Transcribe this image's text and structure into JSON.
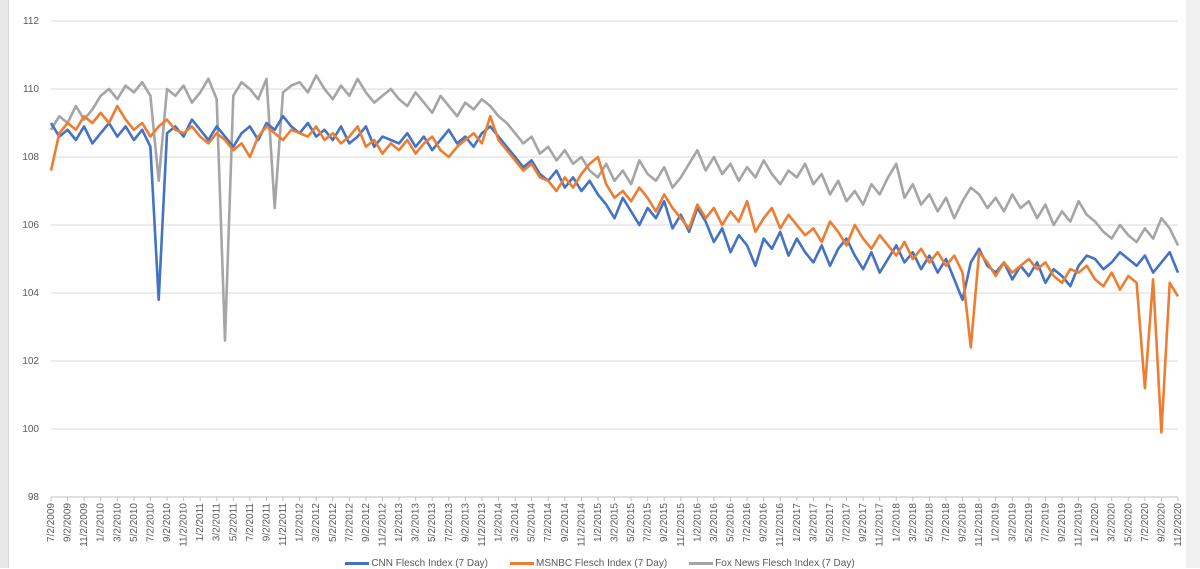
{
  "chart_data": {
    "type": "line",
    "title": "",
    "xlabel": "",
    "ylabel": "",
    "ylim": [
      98,
      112
    ],
    "yticks": [
      98,
      100,
      102,
      104,
      106,
      108,
      110,
      112
    ],
    "grid": true,
    "legend_position": "bottom",
    "x_start": "7/2009",
    "x_interval": "monthly",
    "x_tick_labels": [
      "7/2/2009",
      "9/2/2009",
      "11/2/2009",
      "1/2/2010",
      "3/2/2010",
      "5/2/2010",
      "7/2/2010",
      "9/2/2010",
      "11/2/2010",
      "1/2/2011",
      "3/2/2011",
      "5/2/2011",
      "7/2/2011",
      "9/2/2011",
      "11/2/2011",
      "1/2/2012",
      "3/2/2012",
      "5/2/2012",
      "7/2/2012",
      "9/2/2012",
      "11/2/2012",
      "1/2/2013",
      "3/2/2013",
      "5/2/2013",
      "7/2/2013",
      "9/2/2013",
      "11/2/2013",
      "1/2/2014",
      "3/2/2014",
      "5/2/2014",
      "7/2/2014",
      "9/2/2014",
      "11/2/2014",
      "1/2/2015",
      "3/2/2015",
      "5/2/2015",
      "7/2/2015",
      "9/2/2015",
      "11/2/2015",
      "1/2/2016",
      "3/2/2016",
      "5/2/2016",
      "7/2/2016",
      "9/2/2016",
      "11/2/2016",
      "1/2/2017",
      "3/2/2017",
      "5/2/2017",
      "7/2/2017",
      "9/2/2017",
      "11/2/2017",
      "1/2/2018",
      "3/2/2018",
      "5/2/2018",
      "7/2/2018",
      "9/2/2018",
      "11/2/2018",
      "1/2/2019",
      "3/2/2019",
      "5/2/2019",
      "7/2/2019",
      "9/2/2019",
      "11/2/2019",
      "1/2/2020",
      "3/2/2020",
      "5/2/2020",
      "7/2/2020",
      "9/2/2020",
      "11/2/2020"
    ],
    "series": [
      {
        "name": "CNN Flesch Index (7 Day)",
        "color": "#4472C4",
        "values": [
          109.0,
          108.6,
          108.8,
          108.5,
          108.9,
          108.4,
          108.7,
          109.0,
          108.6,
          108.9,
          108.5,
          108.8,
          108.3,
          103.8,
          108.7,
          108.9,
          108.6,
          109.1,
          108.8,
          108.5,
          108.9,
          108.6,
          108.3,
          108.7,
          108.9,
          108.5,
          109.0,
          108.8,
          109.2,
          108.9,
          108.7,
          109.0,
          108.6,
          108.8,
          108.5,
          108.9,
          108.4,
          108.6,
          108.9,
          108.3,
          108.6,
          108.5,
          108.4,
          108.7,
          108.3,
          108.6,
          108.2,
          108.5,
          108.8,
          108.4,
          108.6,
          108.3,
          108.7,
          108.9,
          108.6,
          108.3,
          108.0,
          107.7,
          107.9,
          107.5,
          107.3,
          107.6,
          107.1,
          107.4,
          107.0,
          107.3,
          106.9,
          106.6,
          106.2,
          106.8,
          106.4,
          106.0,
          106.5,
          106.2,
          106.7,
          105.9,
          106.3,
          105.8,
          106.5,
          106.1,
          105.5,
          105.9,
          105.2,
          105.7,
          105.4,
          104.8,
          105.6,
          105.3,
          105.8,
          105.1,
          105.6,
          105.2,
          104.9,
          105.4,
          104.8,
          105.3,
          105.6,
          105.1,
          104.7,
          105.2,
          104.6,
          105.0,
          105.4,
          104.9,
          105.2,
          104.7,
          105.1,
          104.6,
          105.0,
          104.4,
          103.8,
          104.9,
          105.3,
          104.8,
          104.6,
          104.9,
          104.4,
          104.8,
          104.5,
          104.9,
          104.3,
          104.7,
          104.5,
          104.2,
          104.8,
          105.1,
          105.0,
          104.7,
          104.9,
          105.2,
          105.0,
          104.8,
          105.1,
          104.6,
          104.9,
          105.2,
          104.6
        ]
      },
      {
        "name": "MSNBC Flesch Index (7 Day)",
        "color": "#ED7D31",
        "values": [
          107.6,
          108.7,
          109.0,
          108.8,
          109.2,
          109.0,
          109.3,
          109.0,
          109.5,
          109.1,
          108.8,
          109.0,
          108.6,
          108.9,
          109.1,
          108.8,
          108.7,
          108.9,
          108.6,
          108.4,
          108.7,
          108.5,
          108.2,
          108.4,
          108.0,
          108.6,
          108.9,
          108.7,
          108.5,
          108.8,
          108.7,
          108.6,
          108.9,
          108.5,
          108.7,
          108.4,
          108.6,
          108.9,
          108.3,
          108.5,
          108.1,
          108.4,
          108.2,
          108.5,
          108.1,
          108.4,
          108.6,
          108.2,
          108.0,
          108.3,
          108.5,
          108.7,
          108.4,
          109.2,
          108.5,
          108.2,
          107.9,
          107.6,
          107.8,
          107.4,
          107.3,
          107.0,
          107.4,
          107.1,
          107.5,
          107.8,
          108.0,
          107.2,
          106.8,
          107.0,
          106.7,
          107.1,
          106.8,
          106.4,
          106.9,
          106.5,
          106.2,
          105.9,
          106.6,
          106.2,
          106.5,
          106.0,
          106.4,
          106.1,
          106.7,
          105.8,
          106.2,
          106.5,
          105.9,
          106.3,
          106.0,
          105.7,
          105.9,
          105.5,
          106.1,
          105.8,
          105.4,
          106.0,
          105.6,
          105.3,
          105.7,
          105.4,
          105.1,
          105.5,
          105.0,
          105.3,
          104.9,
          105.2,
          104.8,
          105.1,
          104.6,
          102.4,
          105.2,
          104.9,
          104.5,
          104.9,
          104.6,
          104.8,
          105.0,
          104.7,
          104.9,
          104.5,
          104.3,
          104.7,
          104.6,
          104.8,
          104.4,
          104.2,
          104.6,
          104.1,
          104.5,
          104.3,
          101.2,
          104.4,
          99.9,
          104.3,
          103.9
        ]
      },
      {
        "name": "Fox News Flesch Index (7 Day)",
        "color": "#A5A5A5",
        "values": [
          108.8,
          109.2,
          109.0,
          109.5,
          109.1,
          109.4,
          109.8,
          110.0,
          109.7,
          110.1,
          109.9,
          110.2,
          109.8,
          107.3,
          110.0,
          109.8,
          110.1,
          109.6,
          109.9,
          110.3,
          109.7,
          102.6,
          109.8,
          110.2,
          110.0,
          109.7,
          110.3,
          106.5,
          109.9,
          110.1,
          110.2,
          109.9,
          110.4,
          110.0,
          109.7,
          110.1,
          109.8,
          110.3,
          109.9,
          109.6,
          109.8,
          110.0,
          109.7,
          109.5,
          109.9,
          109.6,
          109.3,
          109.8,
          109.5,
          109.2,
          109.6,
          109.4,
          109.7,
          109.5,
          109.2,
          109.0,
          108.7,
          108.4,
          108.6,
          108.1,
          108.3,
          107.9,
          108.2,
          107.8,
          108.0,
          107.6,
          107.4,
          107.8,
          107.3,
          107.6,
          107.2,
          107.9,
          107.5,
          107.3,
          107.7,
          107.1,
          107.4,
          107.8,
          108.2,
          107.6,
          108.0,
          107.5,
          107.8,
          107.3,
          107.7,
          107.4,
          107.9,
          107.5,
          107.2,
          107.6,
          107.4,
          107.8,
          107.2,
          107.5,
          106.9,
          107.3,
          106.7,
          107.0,
          106.6,
          107.2,
          106.9,
          107.4,
          107.8,
          106.8,
          107.2,
          106.6,
          106.9,
          106.4,
          106.8,
          106.2,
          106.7,
          107.1,
          106.9,
          106.5,
          106.8,
          106.4,
          106.9,
          106.5,
          106.7,
          106.2,
          106.6,
          106.0,
          106.4,
          106.1,
          106.7,
          106.3,
          106.1,
          105.8,
          105.6,
          106.0,
          105.7,
          105.5,
          105.9,
          105.6,
          106.2,
          105.9,
          105.4
        ]
      }
    ]
  }
}
